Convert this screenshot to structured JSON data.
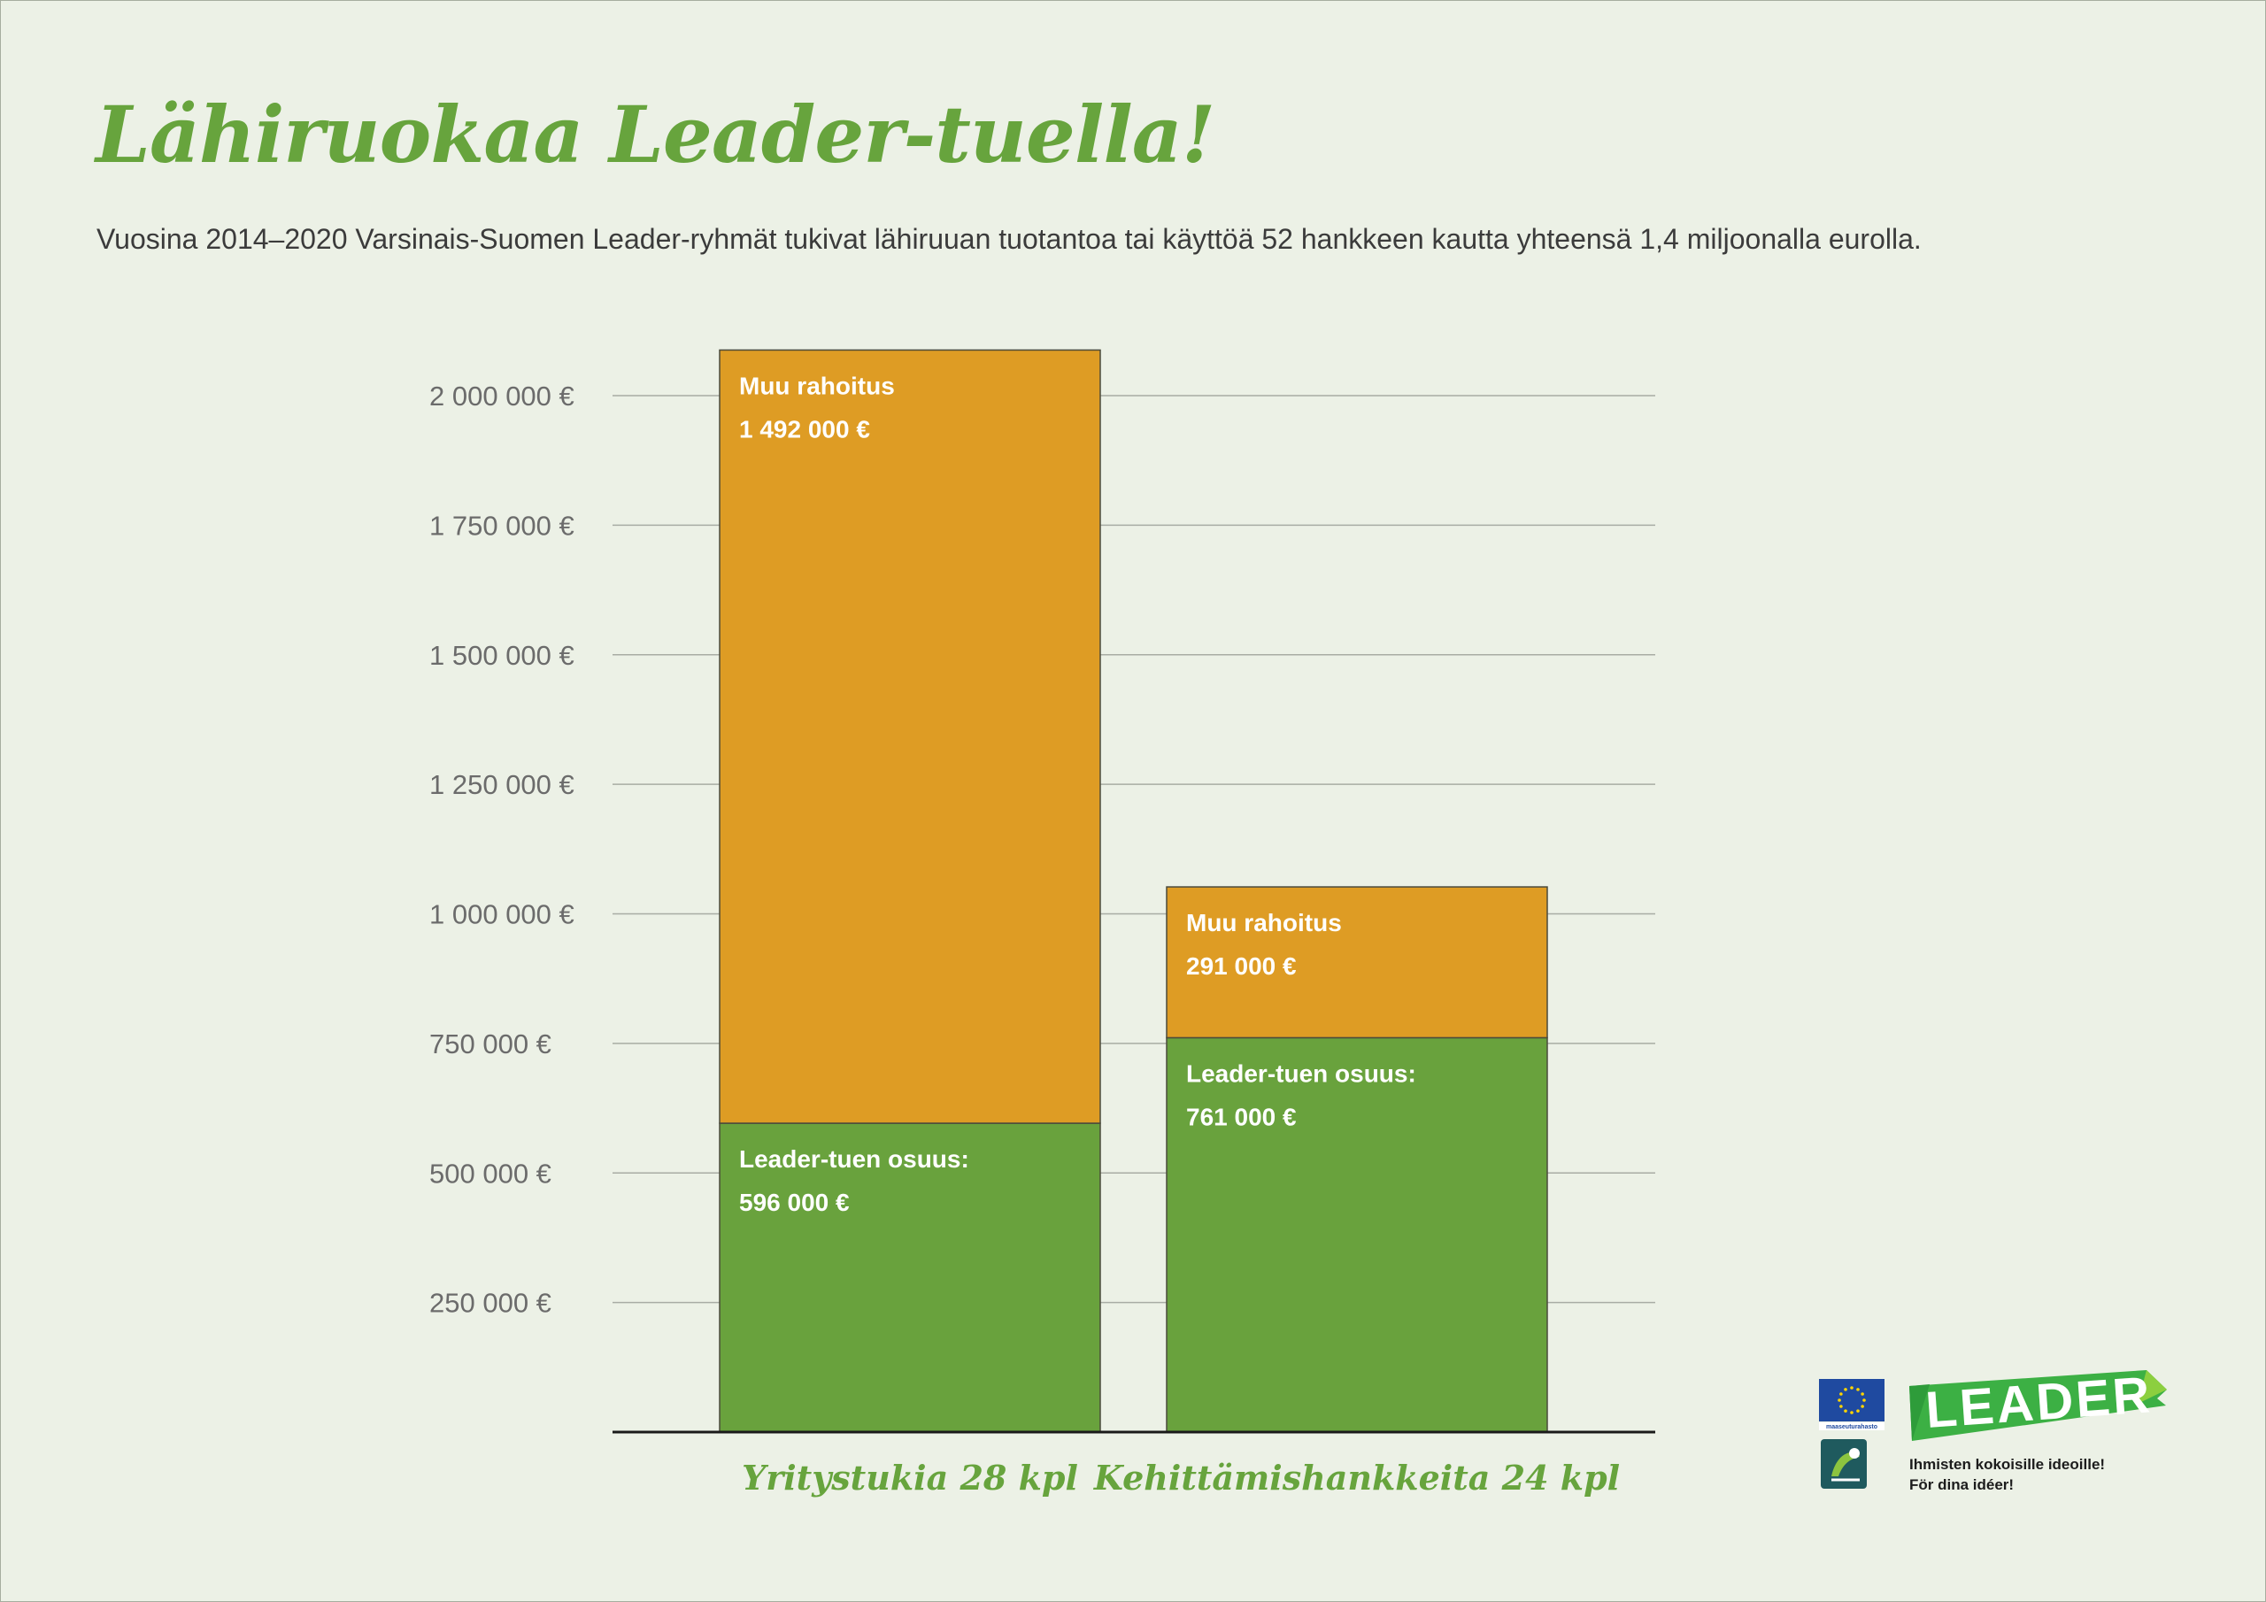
{
  "title": "Lähiruokaa Leader-tuella!",
  "subtitle": "Vuosina 2014–2020 Varsinais-Suomen Leader-ryhmät tukivat lähiruuan tuotantoa tai käyttöä 52 hankkeen kautta yhteensä 1,4 miljoonalla eurolla.",
  "colors": {
    "background": "#ecf1e6",
    "accent_green": "#67a43d",
    "orange": "#de9c24",
    "gridline": "#a8aca4"
  },
  "chart_data": {
    "type": "bar",
    "stacked": true,
    "categories": [
      "Yritystukia 28 kpl",
      "Kehittämishankkeita 24 kpl"
    ],
    "series": [
      {
        "name": "Leader-tuen osuus:",
        "values": [
          596000,
          761000
        ],
        "value_labels": [
          "596 000 €",
          "761 000 €"
        ],
        "color": "#69a23d"
      },
      {
        "name": "Muu rahoitus",
        "values": [
          1492000,
          291000
        ],
        "value_labels": [
          "1 492 000 €",
          "291 000 €"
        ],
        "color": "#de9c24"
      }
    ],
    "yticks": [
      250000,
      500000,
      750000,
      1000000,
      1250000,
      1500000,
      1750000,
      2000000
    ],
    "ytick_labels": [
      "250 000 €",
      "500 000 €",
      "750 000 €",
      "1 000 000 €",
      "1 250 000 €",
      "1 500 000 €",
      "1 750 000 €",
      "2 000 000 €"
    ],
    "ylim": [
      0,
      2100000
    ],
    "grid": true,
    "legend": "none"
  },
  "footer": {
    "eu_logo": "eu-flag-icon",
    "eu_caption": "maaseuturahasto",
    "leader_logo_text": "LEADER",
    "leader_tagline_fi": "Ihmisten kokoisille ideoille!",
    "leader_tagline_sv": "För dina idéer!"
  }
}
